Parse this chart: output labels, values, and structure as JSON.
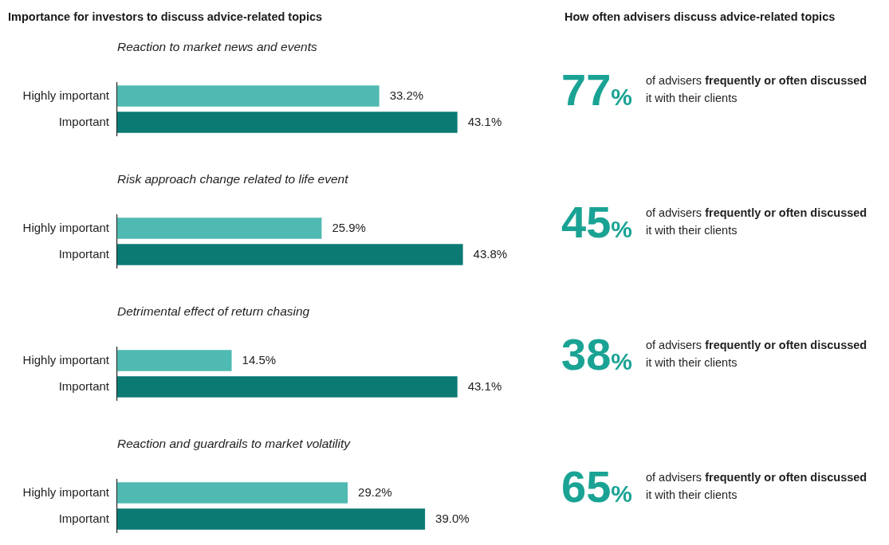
{
  "chart_data": [
    {
      "type": "bar",
      "orientation": "horizontal",
      "title": "Importance for investors to discuss advice-related topics",
      "subtitle": "Reaction to market news and events",
      "categories": [
        "Highly important",
        "Important"
      ],
      "values": [
        33.2,
        43.1
      ],
      "colors": [
        "#4fbab1",
        "#0a7a73"
      ],
      "value_labels": [
        "33.2%",
        "43.1%"
      ]
    },
    {
      "type": "other",
      "title": "How often advisers discuss advice-related topics",
      "annotations": [
        "77%",
        "of advisers",
        "frequently or often discussed",
        "it with their clients"
      ]
    },
    {
      "type": "bar",
      "orientation": "horizontal",
      "subtitle": "Risk approach change related to life event",
      "categories": [
        "Highly important",
        "Important"
      ],
      "values": [
        25.9,
        43.8
      ],
      "colors": [
        "#4fbab1",
        "#0a7a73"
      ],
      "value_labels": [
        "25.9%",
        "43.8%"
      ]
    },
    {
      "type": "other",
      "annotations": [
        "45%",
        "of advisers",
        "frequently or often discussed",
        "it with their clients"
      ]
    },
    {
      "type": "bar",
      "orientation": "horizontal",
      "subtitle": "Detrimental effect of return chasing",
      "categories": [
        "Highly important",
        "Important"
      ],
      "values": [
        14.5,
        43.1
      ],
      "colors": [
        "#4fbab1",
        "#0a7a73"
      ],
      "value_labels": [
        "14.5%",
        "43.1%"
      ]
    },
    {
      "type": "other",
      "annotations": [
        "38%",
        "of advisers",
        "frequently or often discussed",
        "it with their clients"
      ]
    },
    {
      "type": "bar",
      "orientation": "horizontal",
      "subtitle": "Reaction and guardrails to market volatility",
      "categories": [
        "Highly important",
        "Important"
      ],
      "values": [
        29.2,
        39.0
      ],
      "colors": [
        "#4fbab1",
        "#0a7a73"
      ],
      "value_labels": [
        "29.2%",
        "39.0%"
      ]
    },
    {
      "type": "other",
      "annotations": [
        "65%",
        "of advisers",
        "frequently or often discussed",
        "it with their clients"
      ]
    }
  ]
}
